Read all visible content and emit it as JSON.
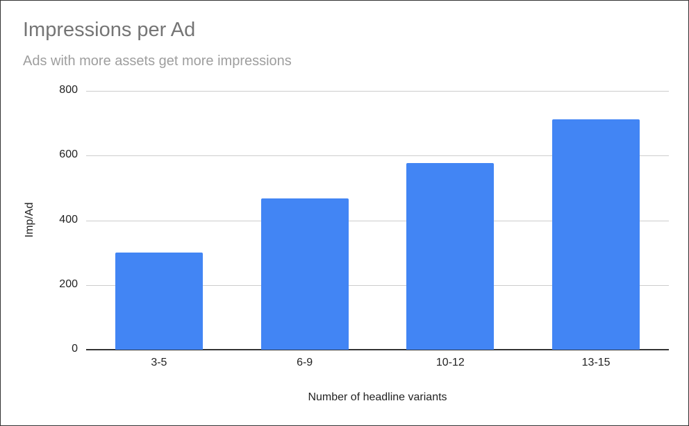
{
  "chart_data": {
    "type": "bar",
    "title": "Impressions per Ad",
    "subtitle": "Ads with more assets get more impressions",
    "xlabel": "Number of headline variants",
    "ylabel": "Imp/Ad",
    "categories": [
      "3-5",
      "6-9",
      "10-12",
      "13-15"
    ],
    "values": [
      300,
      468,
      577,
      712
    ],
    "ylim": [
      0,
      800
    ],
    "yticks": [
      0,
      200,
      400,
      600,
      800
    ],
    "grid": true,
    "legend": "none",
    "bar_color": "#4285f4"
  }
}
